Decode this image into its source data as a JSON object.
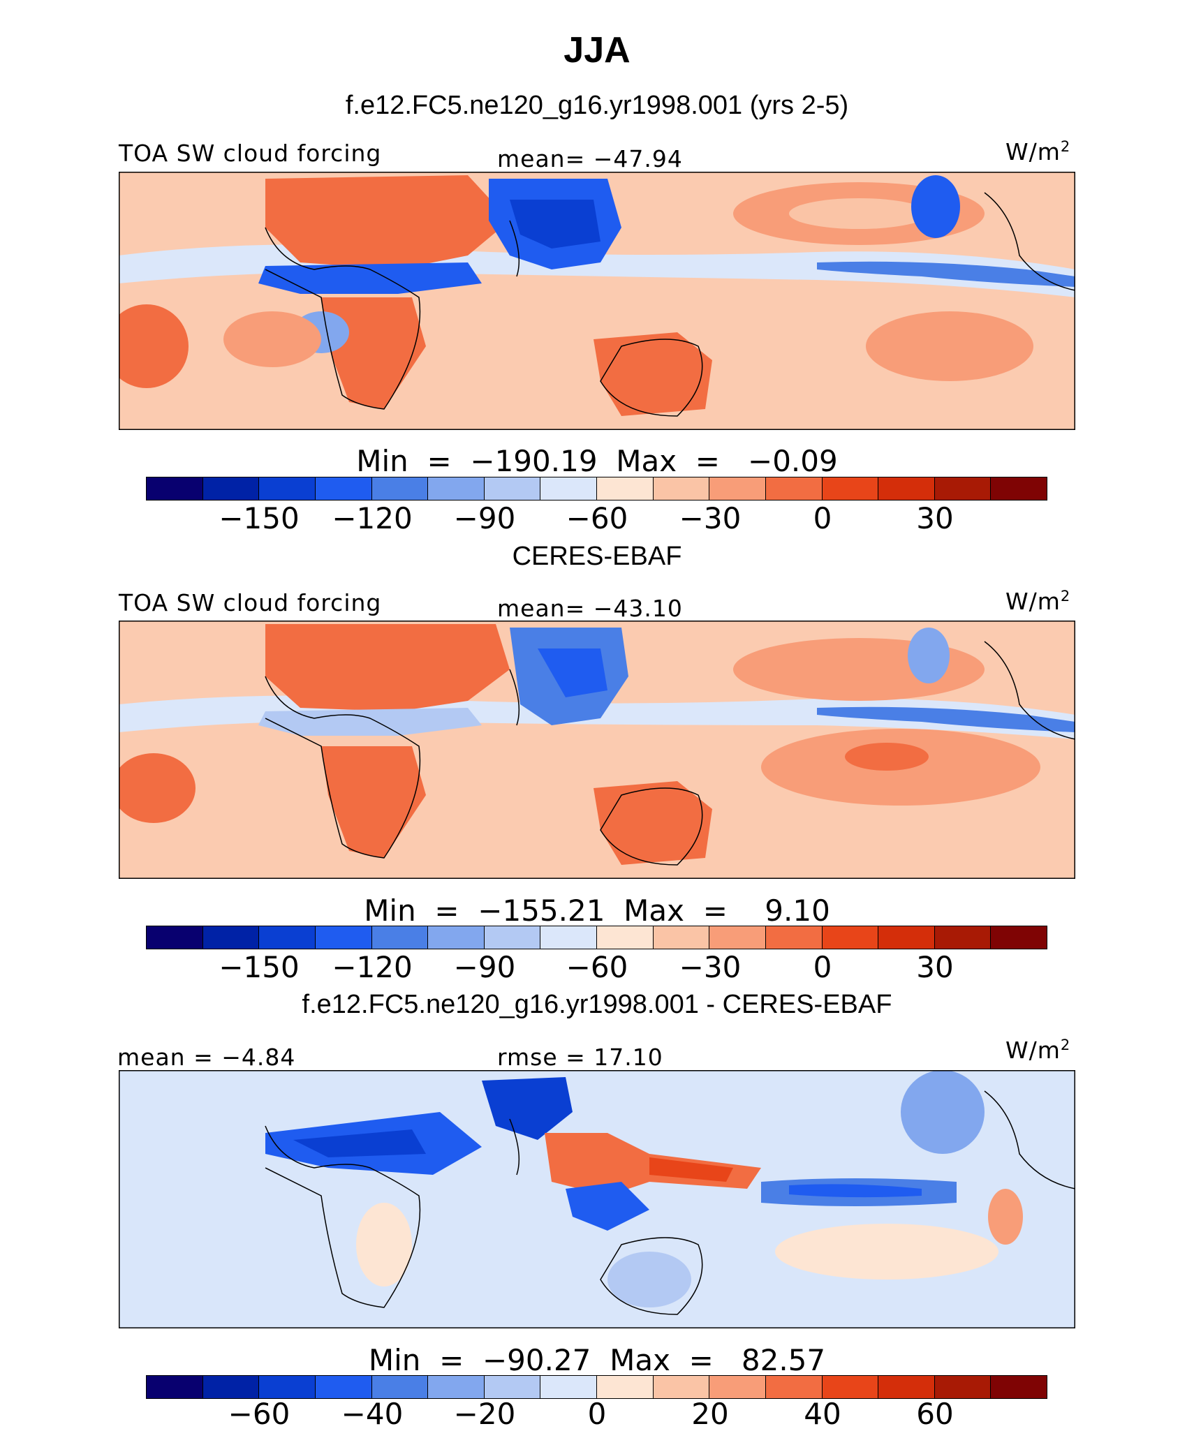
{
  "title": "JJA",
  "colors": {
    "palette": [
      "#08006f",
      "#0022a6",
      "#0a3fd2",
      "#1f5cf0",
      "#4a7fe6",
      "#82a7ee",
      "#b3c9f3",
      "#dbe7fa",
      "#fde5d3",
      "#fac4a6",
      "#f89d78",
      "#f26d42",
      "#e84519",
      "#d42e0a",
      "#a81a05",
      "#7f0404"
    ],
    "ocean_bg": [
      "#fbcbb0",
      "#fbcbb0",
      "#d9e6fa"
    ],
    "coast": "#000000"
  },
  "panels": [
    {
      "subtitle": "f.e12.FC5.ne120_g16.yr1998.001 (yrs 2-5)",
      "left_label": "TOA SW cloud forcing",
      "center_label": "mean= −47.94",
      "units": "W/m",
      "units_exp": "2",
      "minmax": "Min  =  −190.19  Max  =   −0.09",
      "ticks": [
        "−150",
        "−120",
        "−90",
        "−60",
        "−30",
        "0",
        "30"
      ]
    },
    {
      "subtitle": "CERES-EBAF",
      "left_label": "TOA SW cloud forcing",
      "center_label": "mean= −43.10",
      "units": "W/m",
      "units_exp": "2",
      "minmax": "Min  =  −155.21  Max  =    9.10",
      "ticks": [
        "−150",
        "−120",
        "−90",
        "−60",
        "−30",
        "0",
        "30"
      ]
    },
    {
      "subtitle": "f.e12.FC5.ne120_g16.yr1998.001 - CERES-EBAF",
      "left_label": "mean  =   −4.84",
      "center_label": "rmse  =   17.10",
      "units": "W/m",
      "units_exp": "2",
      "minmax": "Min  =  −90.27  Max  =   82.57",
      "ticks": [
        "−60",
        "−40",
        "−20",
        "0",
        "20",
        "40",
        "60"
      ]
    }
  ]
}
